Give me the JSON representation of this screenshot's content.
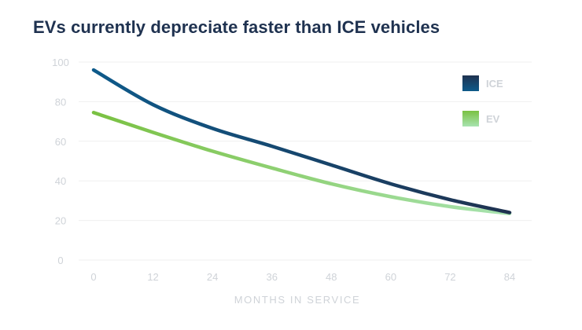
{
  "chart_data": {
    "type": "line",
    "title": "EVs currently depreciate faster than ICE vehicles",
    "xlabel": "MONTHS IN SERVICE",
    "ylabel": "",
    "x": [
      0,
      12,
      24,
      36,
      48,
      60,
      72,
      84
    ],
    "xticks": [
      "0",
      "12",
      "24",
      "36",
      "48",
      "60",
      "72",
      "84"
    ],
    "yticks": [
      "0",
      "20",
      "40",
      "60",
      "80",
      "100"
    ],
    "xlim": [
      -3,
      88
    ],
    "ylim": [
      0,
      100
    ],
    "grid": true,
    "legend_position": "top-right",
    "series": [
      {
        "name": "ICE",
        "values": [
          96,
          78.5,
          66.5,
          57.5,
          48,
          38.5,
          30.5,
          24
        ],
        "gradient": [
          "#0e5a8a",
          "#1f3250"
        ]
      },
      {
        "name": "EV",
        "values": [
          74.5,
          64.5,
          55,
          46.5,
          38.5,
          32,
          27,
          23.5
        ],
        "gradient": [
          "#7ac142",
          "#a8e3b0"
        ]
      }
    ]
  },
  "colors": {
    "title": "#1f3250",
    "grid": "#efefef",
    "tick": "#cfd3d8"
  }
}
